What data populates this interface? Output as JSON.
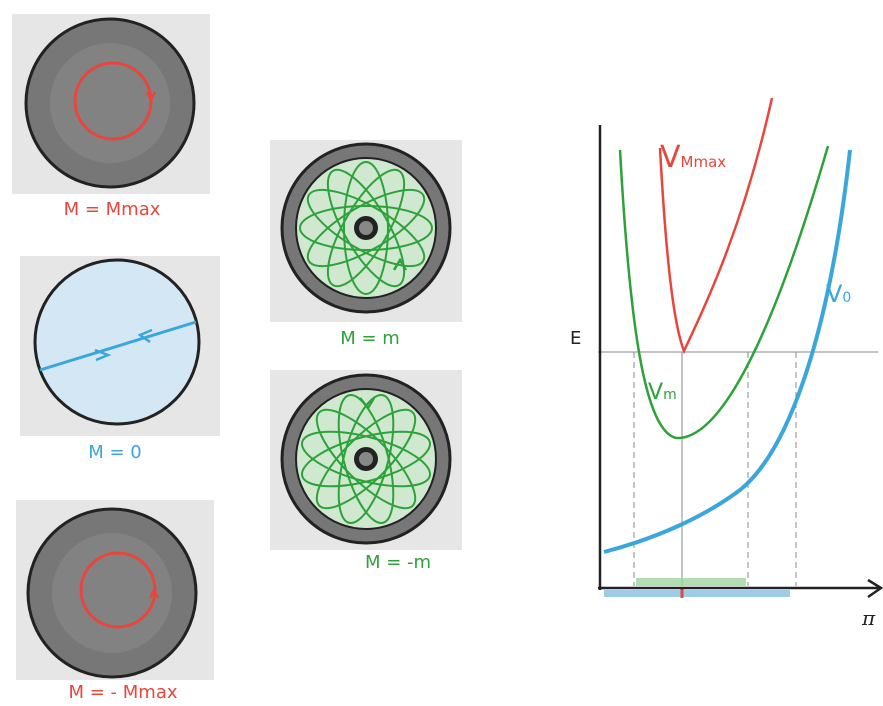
{
  "colors": {
    "red": "#e8453c",
    "blue": "#3aa6dc",
    "green": "#2ea23a",
    "dark_ring": "#6f6f6f",
    "light_green": "#cfe8cf",
    "light_blue": "#d4e7f4",
    "paper": "#e9e9e9"
  },
  "discs": {
    "m_max": {
      "caption": "M = Mmax"
    },
    "m_zero": {
      "caption": "M = 0"
    },
    "m_neg_max": {
      "caption": "M = - Mmax"
    },
    "m_pos": {
      "caption": "M = m"
    },
    "m_neg": {
      "caption": "M = -m"
    }
  },
  "potential_plot": {
    "energy_label": "E",
    "axis_label": "π",
    "curve_labels": {
      "v_max": "V",
      "v_max_sub": "Mmax",
      "v_m": "V",
      "v_m_sub": "m",
      "v_0": "V",
      "v_0_sub": "0"
    }
  }
}
